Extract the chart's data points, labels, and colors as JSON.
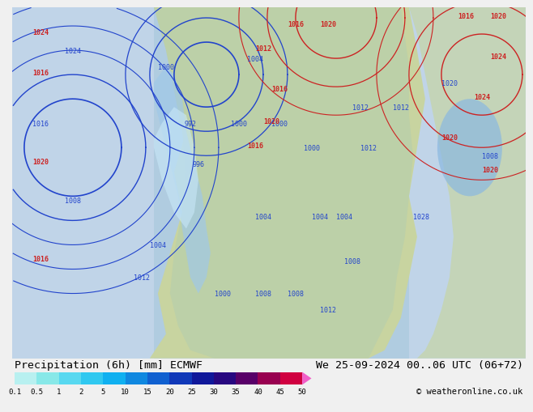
{
  "title_left": "Precipitation (6h) [mm] ECMWF",
  "title_right": "We 25-09-2024 00..06 UTC (06+72)",
  "copyright": "© weatheronline.co.uk",
  "colorbar_levels": [
    0.1,
    0.5,
    1,
    2,
    5,
    10,
    15,
    20,
    25,
    30,
    35,
    40,
    45,
    50
  ],
  "colorbar_colors": [
    "#b8f0f0",
    "#88e8e8",
    "#58d8f0",
    "#30c8f0",
    "#10b0f0",
    "#1088e0",
    "#1060d0",
    "#1038b8",
    "#10189a",
    "#280880",
    "#580068",
    "#980050",
    "#d00040",
    "#f000a0",
    "#f060c8"
  ],
  "bg_color": "#ddeeff",
  "land_color": "#c8d8a0",
  "bottom_bar_color": "#f0f0f0",
  "font_color": "#000000",
  "title_fontsize": 9.5,
  "tick_fontsize": 7.5,
  "fig_width": 6.34,
  "fig_height": 4.9,
  "map_sea_color": "#b8d8ee",
  "map_land_color_main": "#c8d8a8",
  "map_land_color_greenland": "#d0ddd0",
  "precip_blue_light": "#b8e8f8",
  "precip_blue_mid": "#60b0e8",
  "precip_blue_dark": "#1040b8",
  "isobar_blue": "#2244cc",
  "isobar_red": "#cc2222"
}
